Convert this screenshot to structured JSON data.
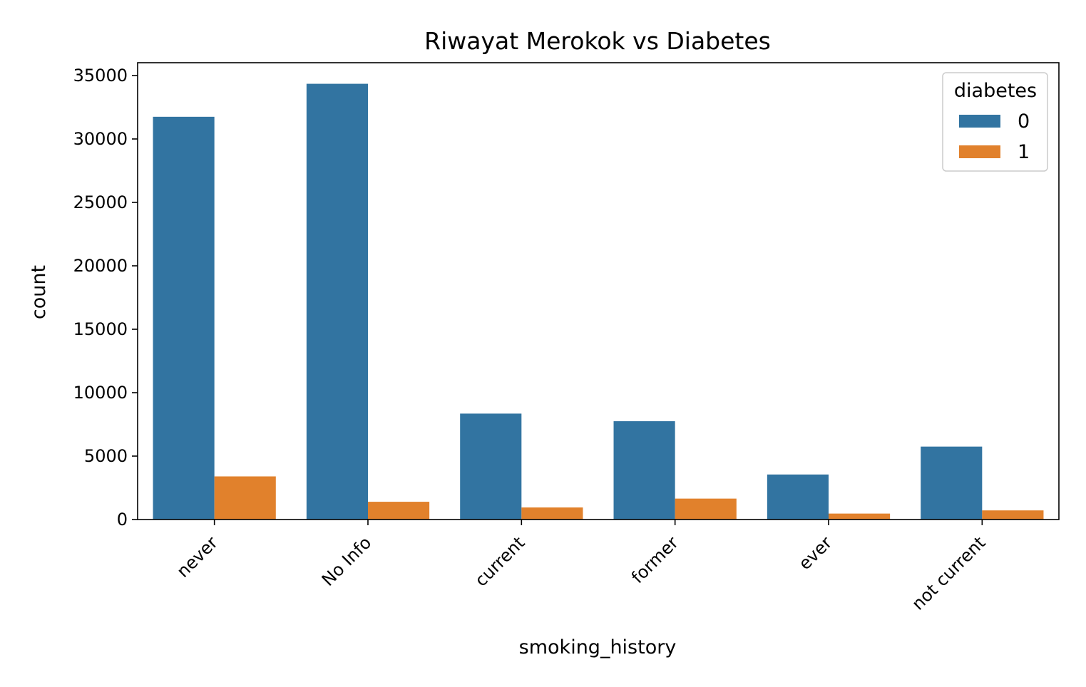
{
  "chart_data": {
    "type": "bar",
    "title": "Riwayat Merokok vs Diabetes",
    "xlabel": "smoking_history",
    "ylabel": "count",
    "categories": [
      "never",
      "No Info",
      "current",
      "former",
      "ever",
      "not current"
    ],
    "series": [
      {
        "name": "0",
        "color": "#3274a1",
        "values": [
          31750,
          34350,
          8350,
          7750,
          3550,
          5750
        ]
      },
      {
        "name": "1",
        "color": "#e1812c",
        "values": [
          3400,
          1400,
          950,
          1650,
          470,
          720
        ]
      }
    ],
    "ylim": [
      0,
      35000
    ],
    "yticks": [
      0,
      5000,
      10000,
      15000,
      20000,
      25000,
      30000,
      35000
    ],
    "ytick_labels": [
      "0",
      "5000",
      "10000",
      "15000",
      "20000",
      "25000",
      "30000",
      "35000"
    ],
    "grid": false,
    "legend": {
      "title": "diabetes",
      "placement": "top-right"
    }
  }
}
